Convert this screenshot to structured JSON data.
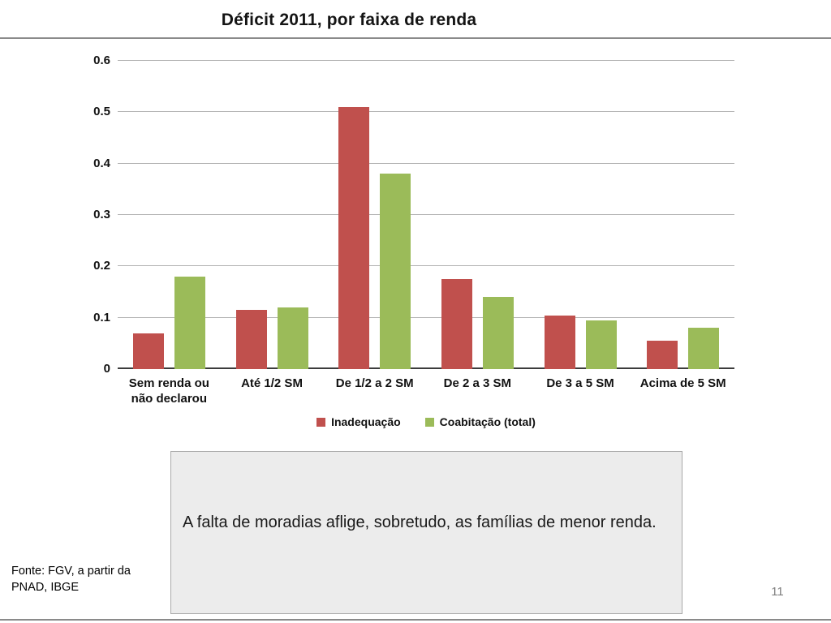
{
  "slide": {
    "title": "Déficit 2011, por faixa de renda",
    "note": "A falta de moradias aflige, sobretudo, as famílias de menor renda.",
    "source": "Fonte: FGV, a partir da\nPNAD, IBGE",
    "page_number": "11"
  },
  "chart_data": {
    "type": "bar",
    "title": "Déficit 2011, por faixa de renda",
    "categories": [
      "Sem renda ou\nnão declarou",
      "Até 1/2 SM",
      "De 1/2 a 2 SM",
      "De 2 a 3 SM",
      "De 3 a 5 SM",
      "Acima de 5 SM"
    ],
    "series": [
      {
        "name": "Inadequação",
        "color": "#C0504D",
        "values": [
          0.07,
          0.115,
          0.51,
          0.175,
          0.105,
          0.055
        ]
      },
      {
        "name": "Coabitação (total)",
        "color": "#9BBB59",
        "values": [
          0.18,
          0.12,
          0.38,
          0.14,
          0.095,
          0.08
        ]
      }
    ],
    "xlabel": "",
    "ylabel": "",
    "ylim": [
      0,
      0.6
    ],
    "yticks": [
      0,
      0.1,
      0.2,
      0.3,
      0.4,
      0.5,
      0.6
    ],
    "grid": true,
    "legend_position": "bottom"
  }
}
